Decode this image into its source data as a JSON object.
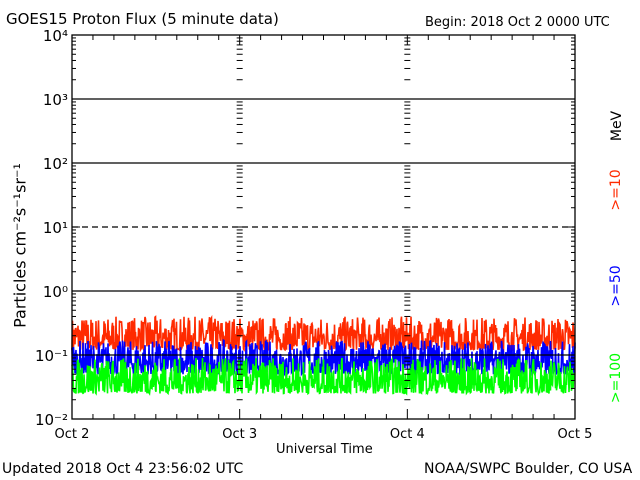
{
  "header": {
    "title": "GOES15 Proton Flux (5 minute data)",
    "begin": "Begin: 2018 Oct 2 0000 UTC"
  },
  "footer": {
    "updated": "Updated 2018 Oct  4 23:56:02 UTC",
    "source": "NOAA/SWPC Boulder, CO USA"
  },
  "chart_data": {
    "type": "line",
    "title": "GOES15 Proton Flux (5 minute data)",
    "xlabel": "Universal Time",
    "ylabel": "Particles cm⁻²s⁻¹sr⁻¹",
    "yscale": "log",
    "ylim": [
      0.01,
      10000
    ],
    "ytick_labels": [
      "10⁻²",
      "10⁻¹",
      "10⁰",
      "10¹",
      "10²",
      "10³",
      "10⁴"
    ],
    "ytick_values": [
      0.01,
      0.1,
      1,
      10,
      100,
      1000,
      10000
    ],
    "xtick_labels": [
      "Oct 2",
      "Oct 3",
      "Oct 4",
      "Oct 5"
    ],
    "xlim": [
      "2018-10-02T00:00Z",
      "2018-10-05T00:00Z"
    ],
    "reference_lines": [
      {
        "value": 1000,
        "style": "solid"
      },
      {
        "value": 100,
        "style": "solid"
      },
      {
        "value": 10,
        "style": "dashed"
      },
      {
        "value": 1,
        "style": "solid"
      },
      {
        "value": 0.1,
        "style": "solid"
      }
    ],
    "units_label": "MeV",
    "series": [
      {
        "name": ">=10",
        "color": "#ff2a00",
        "range": [
          0.12,
          0.4
        ]
      },
      {
        "name": ">=50",
        "color": "#0000ff",
        "range": [
          0.05,
          0.17
        ]
      },
      {
        "name": ">=100",
        "color": "#00ff00",
        "range": [
          0.025,
          0.09
        ]
      }
    ]
  }
}
